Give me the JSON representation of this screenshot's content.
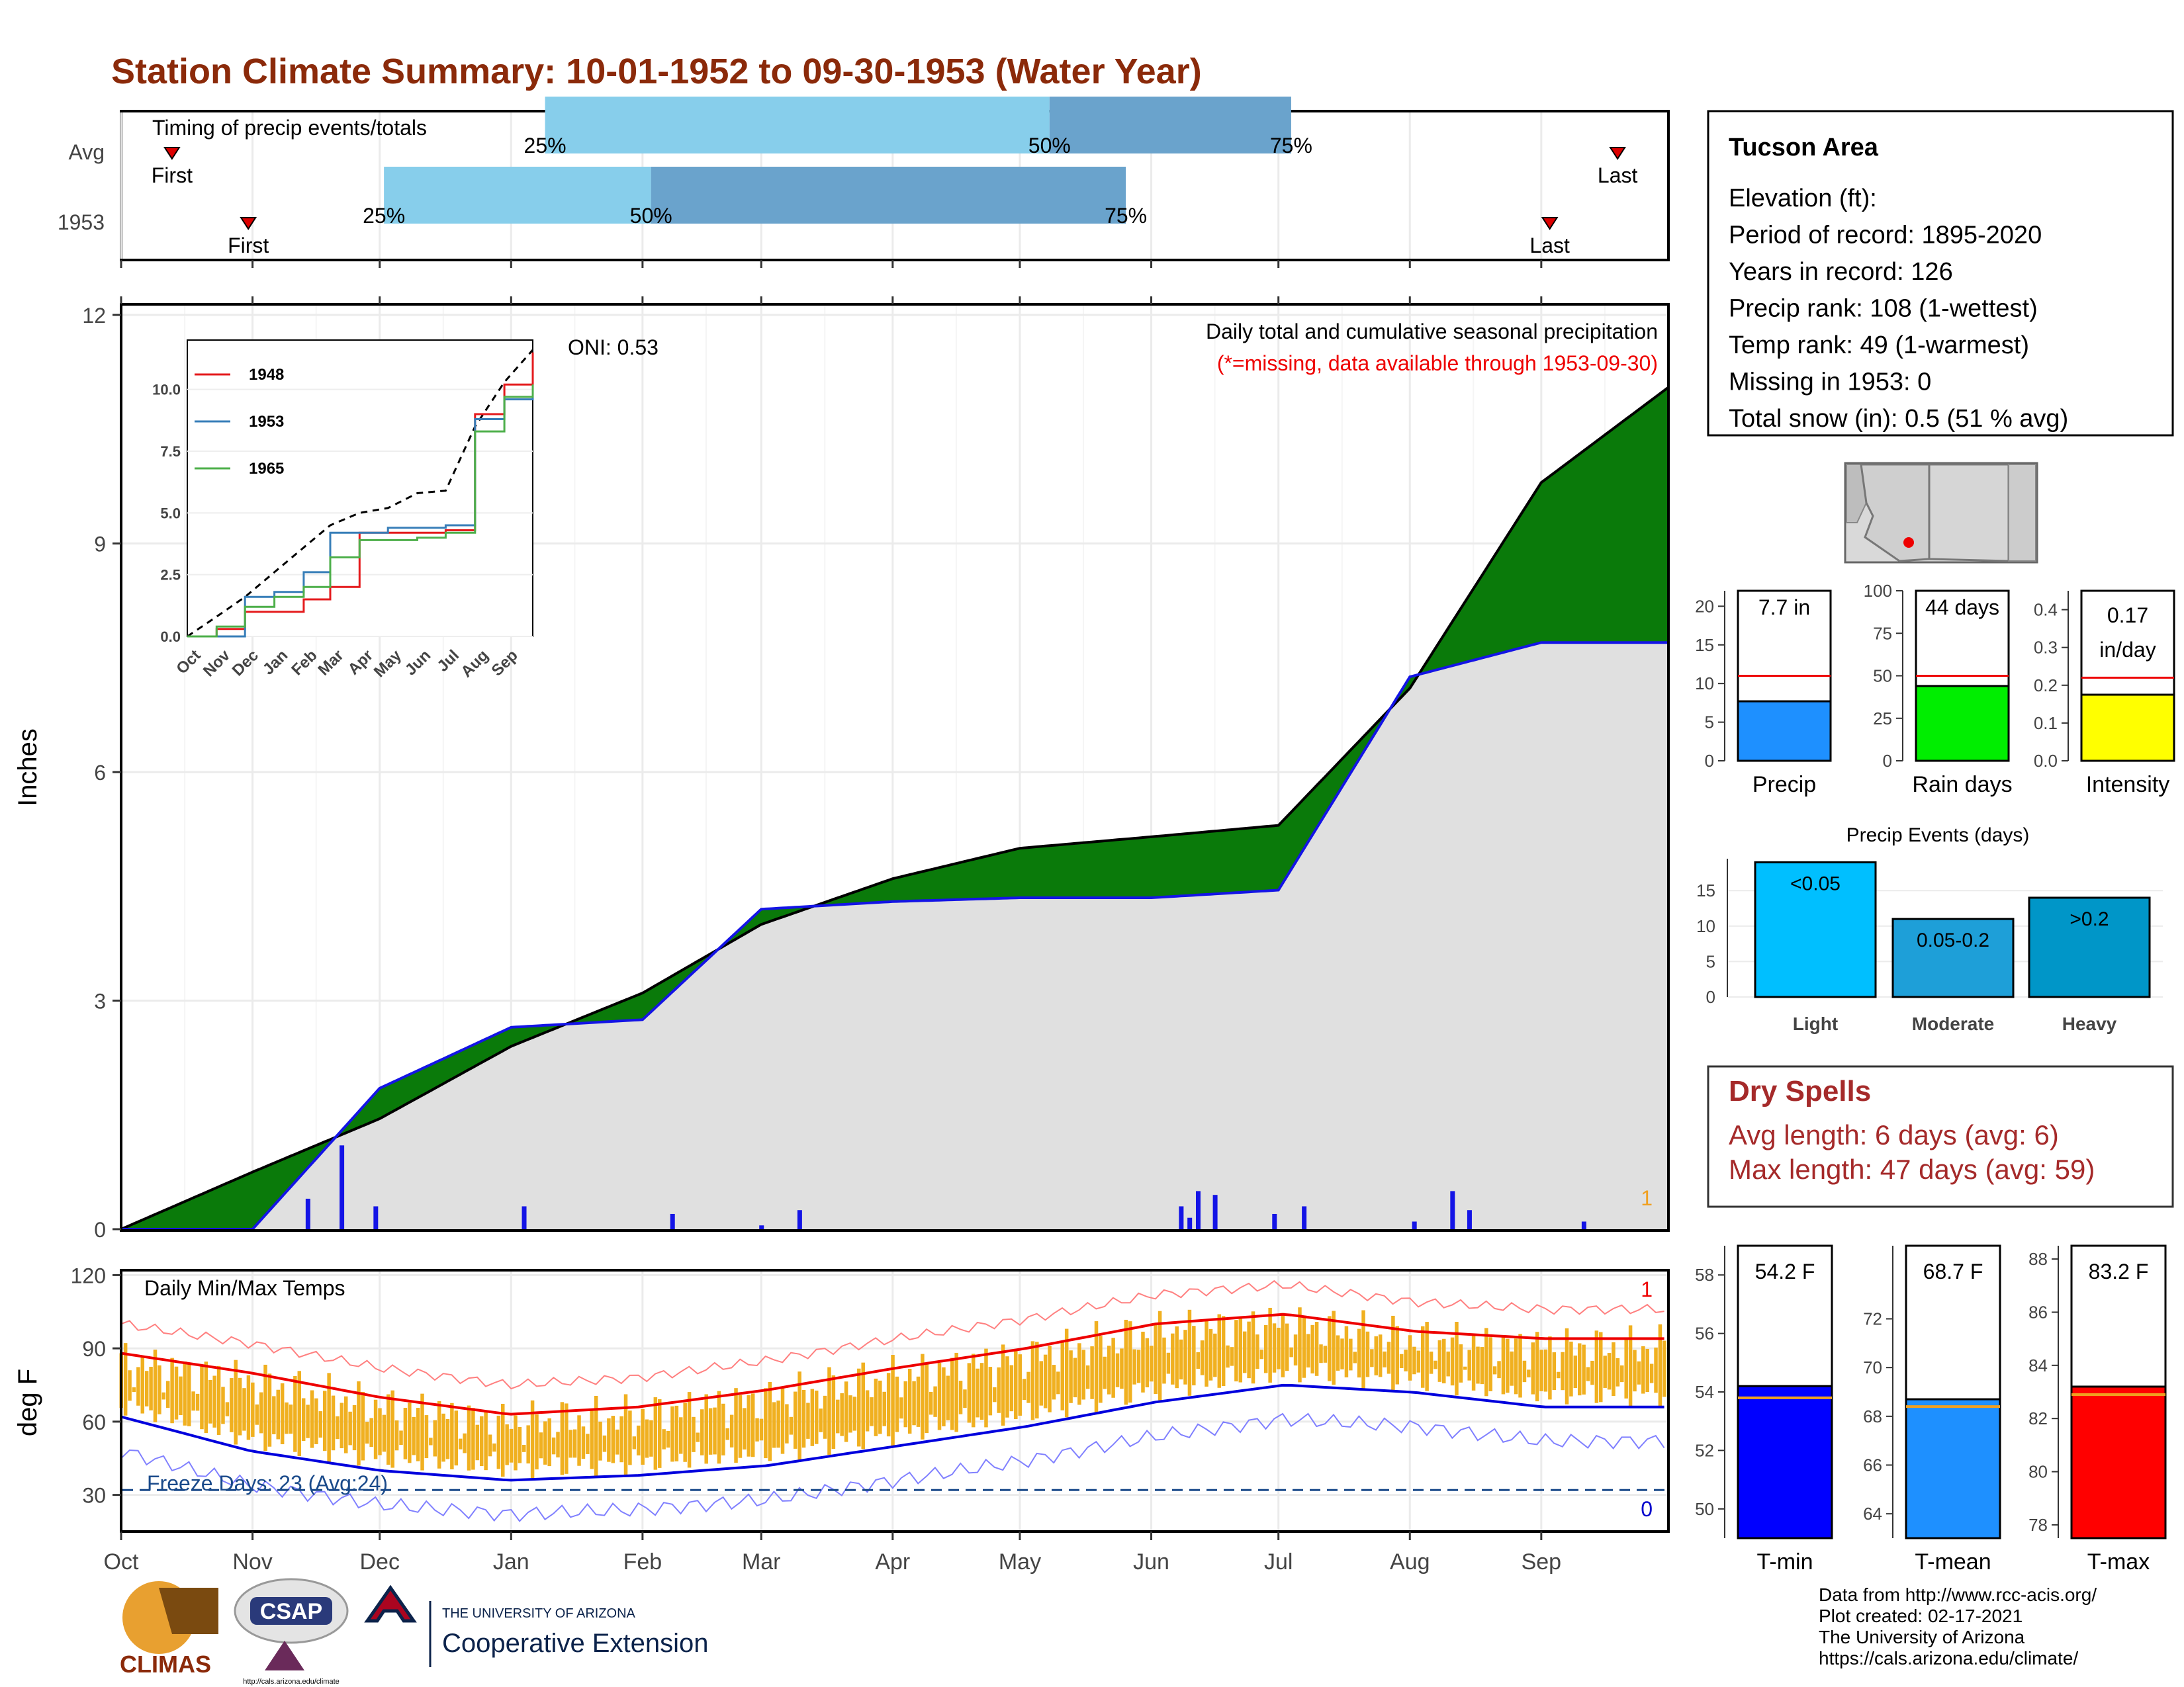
{
  "title": "Station Climate Summary: 10-01-1952 to 09-30-1953 (Water Year)",
  "months": [
    "Oct",
    "Nov",
    "Dec",
    "Jan",
    "Feb",
    "Mar",
    "Apr",
    "May",
    "Jun",
    "Jul",
    "Aug",
    "Sep"
  ],
  "colors": {
    "title": "#8b2a0a",
    "brown": "#8b5a00",
    "green": "#0a7a0a",
    "gray": "#e0e0e0",
    "blue": "#1414e6",
    "orange": "#f0b020",
    "red": "#ee0000",
    "dryspell": "#a52a2a"
  },
  "timing": {
    "label": "Timing of precip events/totals",
    "rows": [
      "Avg",
      "1953"
    ],
    "first_label": "First",
    "last_label": "Last",
    "avg": {
      "first_day": 12,
      "last_day": 353,
      "p25": 100,
      "p50": 219,
      "p75": 276
    },
    "y1953": {
      "first_day": 30,
      "last_day": 337,
      "p25": 62,
      "p50": 125,
      "p75": 237
    },
    "pct_labels": [
      "25%",
      "50%",
      "75%"
    ]
  },
  "precip_panel": {
    "ylabel": "Inches",
    "yticks": [
      "0",
      "3",
      "6",
      "9",
      "12"
    ],
    "ymax": 12,
    "oni": "ONI: 0.53",
    "legend_title": "Daily total and cumulative seasonal precipitation",
    "legend_note": "(*=missing, data available through 1953-09-30)",
    "corner_count": "1"
  },
  "inset": {
    "yticks": [
      "0.0",
      "2.5",
      "5.0",
      "7.5",
      "10.0"
    ],
    "xticks": [
      "Oct",
      "Nov",
      "Dec",
      "Jan",
      "Feb",
      "Mar",
      "Apr",
      "May",
      "Jun",
      "Jul",
      "Aug",
      "Sep"
    ],
    "series": [
      {
        "name": "1948",
        "color": "#e41a1c"
      },
      {
        "name": "1953",
        "color": "#377eb8"
      },
      {
        "name": "1965",
        "color": "#4daf4a"
      }
    ]
  },
  "temp_panel": {
    "ylabel": "deg F",
    "yticks": [
      "30",
      "60",
      "90",
      "120"
    ],
    "label": "Daily Min/Max Temps",
    "freeze": "Freeze Days: 23 (Avg:24)",
    "count_high": "1",
    "count_low": "0"
  },
  "station": {
    "name": "Tucson Area",
    "lines": [
      "Elevation (ft):",
      "Period of record: 1895-2020",
      "Years in record: 126",
      "Precip rank: 108 (1-wettest)",
      "Temp rank: 49 (1-warmest)",
      "Missing in 1953: 0",
      "Total snow (in): 0.5 (51 % avg)"
    ]
  },
  "gauges": [
    {
      "label": "Precip",
      "value_text": "7.7 in",
      "value": 7.7,
      "avg": 11.0,
      "ymax": 22,
      "ticks": [
        "0",
        "5",
        "10",
        "15",
        "20"
      ],
      "tickvals": [
        0,
        5,
        10,
        15,
        20
      ],
      "color": "#1e90ff"
    },
    {
      "label": "Rain days",
      "value_text": "44 days",
      "value": 44,
      "avg": 50,
      "ymax": 100,
      "ticks": [
        "0",
        "25",
        "50",
        "75",
        "100"
      ],
      "tickvals": [
        0,
        25,
        50,
        75,
        100
      ],
      "color": "#00ee00"
    },
    {
      "label": "Intensity",
      "value_text": "0.17 in/day",
      "value": 0.175,
      "avg": 0.22,
      "ymax": 0.45,
      "ticks": [
        "0.0",
        "0.1",
        "0.2",
        "0.3",
        "0.4"
      ],
      "tickvals": [
        0,
        0.1,
        0.2,
        0.3,
        0.4
      ],
      "color": "#ffff00"
    }
  ],
  "events": {
    "title": "Precip Events (days)",
    "bars": [
      {
        "label": "Light",
        "text": "<0.05",
        "value": 19,
        "color": "#00bfff"
      },
      {
        "label": "Moderate",
        "text": "0.05-0.2",
        "value": 11,
        "color": "#1e9fd8"
      },
      {
        "label": "Heavy",
        "text": ">0.2",
        "value": 14,
        "color": "#0096c8"
      }
    ],
    "ticks": [
      "0",
      "5",
      "10",
      "15"
    ]
  },
  "dry": {
    "title": "Dry Spells",
    "avg": "Avg length: 6 days (avg: 6)",
    "max": "Max length: 47 days (avg: 59)"
  },
  "temp_gauges": [
    {
      "label": "T-min",
      "value_text": "54.2 F",
      "value": 54.2,
      "avg": 53.8,
      "ymin": 49,
      "ymax": 59,
      "ticks": [
        "50",
        "52",
        "54",
        "56",
        "58"
      ],
      "tickvals": [
        50,
        52,
        54,
        56,
        58
      ],
      "color": "#0000ff"
    },
    {
      "label": "T-mean",
      "value_text": "68.7 F",
      "value": 68.7,
      "avg": 68.4,
      "ymin": 63,
      "ymax": 75,
      "ticks": [
        "64",
        "66",
        "68",
        "70",
        "72"
      ],
      "tickvals": [
        64,
        66,
        68,
        70,
        72
      ],
      "color": "#1e90ff"
    },
    {
      "label": "T-max",
      "value_text": "83.2 F",
      "value": 83.2,
      "avg": 82.9,
      "ymin": 77.5,
      "ymax": 88.5,
      "ticks": [
        "78",
        "80",
        "82",
        "84",
        "86",
        "88"
      ],
      "tickvals": [
        78,
        80,
        82,
        84,
        86,
        88
      ],
      "color": "#ff0000"
    }
  ],
  "credits": [
    "Data from http://www.rcc-acis.org/",
    "Plot created: 02-17-2021",
    "The University of Arizona",
    "https://cals.arizona.edu/climate/"
  ],
  "logos": {
    "climas": "CLIMAS",
    "csap": "CSAP",
    "csap_url": "http://cals.arizona.edu/climate",
    "ua_small": "THE UNIVERSITY OF ARIZONA",
    "ua_big": "Cooperative Extension"
  },
  "chart_data": {
    "type": "area",
    "title": "Daily total and cumulative seasonal precipitation",
    "ylabel": "Inches",
    "ylim": [
      0,
      12
    ],
    "cumulative_avg": {
      "x": [
        "Oct",
        "Nov",
        "Dec",
        "Jan",
        "Feb",
        "Mar",
        "Apr",
        "May",
        "Jun",
        "Jul",
        "Aug",
        "Sep",
        "end"
      ],
      "y": [
        0.0,
        0.75,
        1.45,
        2.4,
        3.1,
        4.0,
        4.6,
        5.0,
        5.15,
        5.3,
        7.1,
        9.8,
        11.05
      ]
    },
    "cumulative_1953": {
      "x": [
        "Oct",
        "Nov",
        "Dec",
        "Jan",
        "Feb",
        "Mar",
        "Apr",
        "May",
        "Jun",
        "Jul",
        "Aug",
        "Sep",
        "end"
      ],
      "y": [
        0.0,
        0.0,
        1.85,
        2.65,
        2.75,
        4.2,
        4.3,
        4.35,
        4.35,
        4.45,
        7.25,
        7.7,
        7.7
      ]
    },
    "daily_events_1953": [
      {
        "day": 44,
        "in": 0.4
      },
      {
        "day": 52,
        "in": 1.1
      },
      {
        "day": 60,
        "in": 0.3
      },
      {
        "day": 95,
        "in": 0.3
      },
      {
        "day": 130,
        "in": 0.2
      },
      {
        "day": 151,
        "in": 0.05
      },
      {
        "day": 160,
        "in": 0.25
      },
      {
        "day": 250,
        "in": 0.3
      },
      {
        "day": 252,
        "in": 0.15
      },
      {
        "day": 254,
        "in": 0.5
      },
      {
        "day": 258,
        "in": 0.45
      },
      {
        "day": 272,
        "in": 0.2
      },
      {
        "day": 279,
        "in": 0.3
      },
      {
        "day": 305,
        "in": 0.1
      },
      {
        "day": 314,
        "in": 0.5
      },
      {
        "day": 318,
        "in": 0.25
      },
      {
        "day": 345,
        "in": 0.1
      }
    ],
    "temperature": {
      "ylabel": "deg F",
      "ylim": [
        15,
        122
      ],
      "avg_max_monthly": [
        88,
        80,
        70,
        63,
        66,
        73,
        82,
        90,
        100,
        104,
        97,
        94
      ],
      "avg_min_monthly": [
        62,
        48,
        40,
        36,
        38,
        42,
        50,
        58,
        68,
        75,
        72,
        66
      ],
      "freeze_line": 32
    }
  }
}
